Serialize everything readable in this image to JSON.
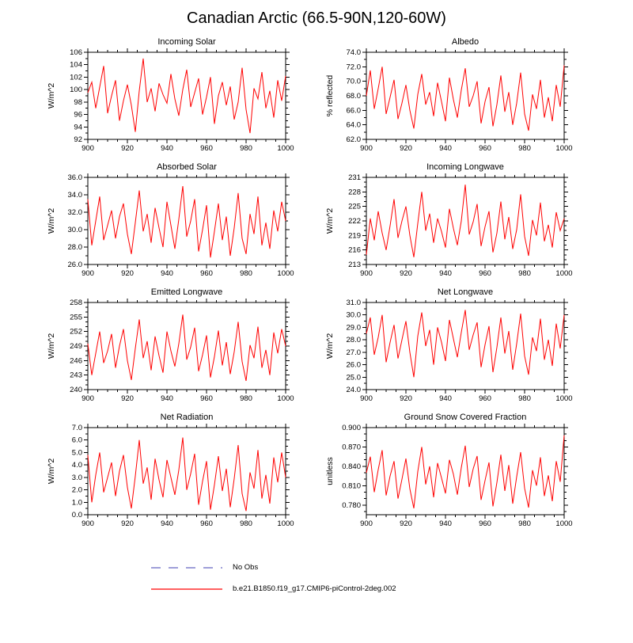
{
  "page_title": "Canadian Arctic (66.5-90N,120-60W)",
  "legend": {
    "items": [
      {
        "label": "No Obs",
        "color": "#9f9fd9",
        "style": "dashed"
      },
      {
        "label": "b.e21.B1850.f19_g17.CMIP6-piControl-2deg.002",
        "color": "#ff0000",
        "style": "solid"
      }
    ]
  },
  "chart_data": [
    {
      "type": "line",
      "title": "Incoming Solar",
      "ylabel": "W/m^2",
      "xlim": [
        900,
        1000
      ],
      "xticks": [
        900,
        920,
        940,
        960,
        980,
        1000
      ],
      "xtick_labels": [
        "900",
        "920",
        "940",
        "960",
        "980",
        "1000"
      ],
      "xminor": 5,
      "ylim": [
        92,
        106
      ],
      "yticks": [
        92,
        94,
        96,
        98,
        100,
        102,
        104,
        106
      ],
      "ytick_labels": [
        "92",
        "94",
        "96",
        "98",
        "100",
        "102",
        "104",
        "106"
      ],
      "yminor": 1,
      "series": [
        {
          "name": "b.e21.B1850.f19_g17.CMIP6-piControl-2deg.002",
          "color": "#ff0000",
          "x_start": 900,
          "x_step": 2,
          "values": [
            99.5,
            101.2,
            97.0,
            100.4,
            103.8,
            96.2,
            99.0,
            101.5,
            95.0,
            98.2,
            100.8,
            97.5,
            93.2,
            99.8,
            105.0,
            98.0,
            100.2,
            96.5,
            101.0,
            99.2,
            97.8,
            102.5,
            98.5,
            95.8,
            100.0,
            103.2,
            97.2,
            99.5,
            101.8,
            96.0,
            98.8,
            102.0,
            94.5,
            99.0,
            101.2,
            97.5,
            100.5,
            95.2,
            98.0,
            103.5,
            96.8,
            93.0,
            100.2,
            98.5,
            102.8,
            97.0,
            99.8,
            95.5,
            101.5,
            98.2,
            102.2
          ]
        }
      ]
    },
    {
      "type": "line",
      "title": "Albedo",
      "ylabel": "% reflected",
      "xlim": [
        900,
        1000
      ],
      "xticks": [
        900,
        920,
        940,
        960,
        980,
        1000
      ],
      "xtick_labels": [
        "900",
        "920",
        "940",
        "960",
        "980",
        "1000"
      ],
      "xminor": 5,
      "ylim": [
        62,
        74
      ],
      "yticks": [
        62,
        64,
        66,
        68,
        70,
        72,
        74
      ],
      "ytick_labels": [
        "62.0",
        "64.0",
        "66.0",
        "68.0",
        "70.0",
        "72.0",
        "74.0"
      ],
      "yminor": 1,
      "series": [
        {
          "name": "b.e21.B1850.f19_g17.CMIP6-piControl-2deg.002",
          "color": "#ff0000",
          "x_start": 900,
          "x_step": 2,
          "values": [
            68.0,
            71.5,
            66.2,
            69.0,
            72.0,
            65.5,
            67.8,
            70.2,
            64.8,
            67.0,
            69.5,
            66.0,
            63.5,
            68.2,
            71.0,
            66.8,
            68.5,
            65.2,
            69.8,
            67.2,
            64.5,
            70.5,
            67.5,
            65.0,
            68.8,
            71.8,
            66.5,
            68.0,
            70.0,
            64.2,
            67.2,
            69.2,
            63.8,
            66.8,
            70.8,
            65.8,
            68.5,
            64.0,
            67.0,
            71.2,
            65.5,
            63.2,
            68.2,
            66.2,
            70.2,
            65.0,
            67.8,
            64.5,
            69.5,
            66.5,
            72.2
          ]
        }
      ]
    },
    {
      "type": "line",
      "title": "Absorbed Solar",
      "ylabel": "W/m^2",
      "xlim": [
        900,
        1000
      ],
      "xticks": [
        900,
        920,
        940,
        960,
        980,
        1000
      ],
      "xtick_labels": [
        "900",
        "920",
        "940",
        "960",
        "980",
        "1000"
      ],
      "xminor": 5,
      "ylim": [
        26,
        36
      ],
      "yticks": [
        26,
        28,
        30,
        32,
        34,
        36
      ],
      "ytick_labels": [
        "26.0",
        "28.0",
        "30.0",
        "32.0",
        "34.0",
        "36.0"
      ],
      "yminor": 1,
      "series": [
        {
          "name": "b.e21.B1850.f19_g17.CMIP6-piControl-2deg.002",
          "color": "#ff0000",
          "x_start": 900,
          "x_step": 2,
          "values": [
            33.5,
            28.2,
            31.0,
            33.8,
            28.8,
            30.5,
            32.2,
            29.0,
            31.5,
            33.0,
            29.5,
            27.2,
            30.8,
            34.5,
            29.8,
            31.8,
            28.5,
            32.5,
            30.2,
            28.0,
            33.2,
            30.5,
            27.8,
            31.2,
            35.0,
            29.2,
            31.0,
            33.5,
            27.5,
            30.0,
            32.8,
            26.8,
            29.8,
            33.0,
            28.8,
            31.5,
            27.0,
            30.2,
            34.2,
            29.0,
            27.2,
            31.8,
            29.5,
            33.8,
            28.2,
            30.8,
            27.8,
            32.2,
            29.8,
            33.2,
            31.0
          ]
        }
      ]
    },
    {
      "type": "line",
      "title": "Incoming Longwave",
      "ylabel": "W/m^2",
      "xlim": [
        900,
        1000
      ],
      "xticks": [
        900,
        920,
        940,
        960,
        980,
        1000
      ],
      "xtick_labels": [
        "900",
        "920",
        "940",
        "960",
        "980",
        "1000"
      ],
      "xminor": 5,
      "ylim": [
        213,
        231
      ],
      "yticks": [
        213,
        216,
        219,
        222,
        225,
        228,
        231
      ],
      "ytick_labels": [
        "213",
        "216",
        "219",
        "222",
        "225",
        "228",
        "231"
      ],
      "yminor": 1,
      "series": [
        {
          "name": "b.e21.B1850.f19_g17.CMIP6-piControl-2deg.002",
          "color": "#ff0000",
          "x_start": 900,
          "x_step": 2,
          "values": [
            215.0,
            222.5,
            218.0,
            224.0,
            219.5,
            216.0,
            221.0,
            226.5,
            218.5,
            222.0,
            225.0,
            219.0,
            214.5,
            221.5,
            228.0,
            220.0,
            223.5,
            217.5,
            222.5,
            219.8,
            216.5,
            224.5,
            220.5,
            217.0,
            222.0,
            229.5,
            219.2,
            221.8,
            225.5,
            216.8,
            220.8,
            224.0,
            215.5,
            219.5,
            226.0,
            218.2,
            222.8,
            216.2,
            220.2,
            227.5,
            218.8,
            214.8,
            222.2,
            219.0,
            225.8,
            217.8,
            221.2,
            216.5,
            223.8,
            220.0,
            222.5
          ]
        }
      ]
    },
    {
      "type": "line",
      "title": "Emitted Longwave",
      "ylabel": "W/m^2",
      "xlim": [
        900,
        1000
      ],
      "xticks": [
        900,
        920,
        940,
        960,
        980,
        1000
      ],
      "xtick_labels": [
        "900",
        "920",
        "940",
        "960",
        "980",
        "1000"
      ],
      "xminor": 5,
      "ylim": [
        240,
        258
      ],
      "yticks": [
        240,
        243,
        246,
        249,
        252,
        255,
        258
      ],
      "ytick_labels": [
        "240",
        "243",
        "246",
        "249",
        "252",
        "255",
        "258"
      ],
      "yminor": 1,
      "series": [
        {
          "name": "b.e21.B1850.f19_g17.CMIP6-piControl-2deg.002",
          "color": "#ff0000",
          "x_start": 900,
          "x_step": 2,
          "values": [
            249.5,
            243.0,
            247.5,
            252.0,
            245.5,
            248.0,
            251.5,
            244.5,
            249.0,
            252.5,
            246.0,
            242.0,
            248.5,
            254.5,
            246.5,
            250.0,
            244.0,
            251.0,
            247.0,
            243.5,
            252.0,
            248.0,
            244.8,
            249.5,
            255.5,
            246.2,
            248.8,
            252.8,
            243.8,
            247.2,
            251.2,
            242.5,
            246.8,
            252.2,
            245.0,
            249.8,
            243.2,
            247.8,
            254.0,
            245.8,
            241.8,
            249.2,
            246.5,
            253.0,
            244.5,
            248.2,
            243.0,
            251.8,
            247.5,
            252.5,
            249.0
          ]
        }
      ]
    },
    {
      "type": "line",
      "title": "Net Longwave",
      "ylabel": "W/m^2",
      "xlim": [
        900,
        1000
      ],
      "xticks": [
        900,
        920,
        940,
        960,
        980,
        1000
      ],
      "xtick_labels": [
        "900",
        "920",
        "940",
        "960",
        "980",
        "1000"
      ],
      "xminor": 5,
      "ylim": [
        24,
        31
      ],
      "yticks": [
        24,
        25,
        26,
        27,
        28,
        29,
        30,
        31
      ],
      "ytick_labels": [
        "24.0",
        "25.0",
        "26.0",
        "27.0",
        "28.0",
        "29.0",
        "30.0",
        "31.0"
      ],
      "yminor": 0.5,
      "series": [
        {
          "name": "b.e21.B1850.f19_g17.CMIP6-piControl-2deg.002",
          "color": "#ff0000",
          "x_start": 900,
          "x_step": 2,
          "values": [
            28.5,
            29.8,
            26.8,
            28.2,
            30.0,
            26.2,
            27.8,
            29.2,
            26.5,
            28.0,
            29.5,
            27.0,
            25.0,
            28.3,
            30.2,
            27.5,
            28.8,
            26.0,
            29.0,
            27.8,
            26.3,
            29.6,
            28.1,
            26.6,
            28.6,
            30.4,
            27.2,
            28.4,
            29.4,
            25.8,
            27.6,
            29.1,
            25.4,
            27.4,
            29.8,
            26.9,
            28.7,
            25.6,
            27.7,
            30.1,
            26.7,
            25.2,
            28.2,
            27.1,
            29.7,
            26.4,
            28.0,
            25.9,
            29.3,
            27.3,
            30.0
          ]
        }
      ]
    },
    {
      "type": "line",
      "title": "Net Radiation",
      "ylabel": "W/m^2",
      "xlim": [
        900,
        1000
      ],
      "xticks": [
        900,
        920,
        940,
        960,
        980,
        1000
      ],
      "xtick_labels": [
        "900",
        "920",
        "940",
        "960",
        "980",
        "1000"
      ],
      "xminor": 5,
      "ylim": [
        0,
        7
      ],
      "yticks": [
        0,
        1,
        2,
        3,
        4,
        5,
        6,
        7
      ],
      "ytick_labels": [
        "0.0",
        "1.0",
        "2.0",
        "3.0",
        "4.0",
        "5.0",
        "6.0",
        "7.0"
      ],
      "yminor": 0.5,
      "series": [
        {
          "name": "b.e21.B1850.f19_g17.CMIP6-piControl-2deg.002",
          "color": "#ff0000",
          "x_start": 900,
          "x_step": 2,
          "values": [
            4.8,
            1.0,
            3.2,
            5.0,
            1.8,
            3.0,
            4.2,
            1.5,
            3.5,
            4.8,
            2.2,
            0.5,
            3.1,
            6.0,
            2.5,
            3.8,
            1.2,
            4.5,
            2.8,
            1.4,
            4.4,
            3.0,
            1.6,
            3.6,
            6.2,
            2.0,
            3.3,
            4.9,
            0.8,
            2.7,
            4.3,
            0.4,
            2.4,
            4.7,
            1.9,
            3.7,
            0.6,
            2.9,
            5.6,
            1.7,
            0.3,
            3.4,
            2.1,
            5.2,
            1.3,
            3.2,
            0.9,
            4.6,
            2.6,
            5.0,
            3.0
          ]
        }
      ]
    },
    {
      "type": "line",
      "title": "Ground Snow Covered Fraction",
      "ylabel": "unitless",
      "xlim": [
        900,
        1000
      ],
      "xticks": [
        900,
        920,
        940,
        960,
        980,
        1000
      ],
      "xtick_labels": [
        "900",
        "920",
        "940",
        "960",
        "980",
        "1000"
      ],
      "xminor": 5,
      "ylim": [
        0.765,
        0.9
      ],
      "yticks": [
        0.78,
        0.81,
        0.84,
        0.87,
        0.9
      ],
      "ytick_labels": [
        "0.780",
        "0.810",
        "0.840",
        "0.870",
        "0.900"
      ],
      "yminor": 0.01,
      "series": [
        {
          "name": "b.e21.B1850.f19_g17.CMIP6-piControl-2deg.002",
          "color": "#ff0000",
          "x_start": 900,
          "x_step": 2,
          "values": [
            0.83,
            0.855,
            0.8,
            0.835,
            0.865,
            0.795,
            0.825,
            0.848,
            0.79,
            0.82,
            0.852,
            0.805,
            0.775,
            0.832,
            0.87,
            0.812,
            0.84,
            0.792,
            0.845,
            0.822,
            0.798,
            0.85,
            0.828,
            0.796,
            0.838,
            0.872,
            0.808,
            0.836,
            0.856,
            0.788,
            0.818,
            0.846,
            0.778,
            0.815,
            0.858,
            0.802,
            0.842,
            0.782,
            0.824,
            0.862,
            0.806,
            0.776,
            0.834,
            0.81,
            0.854,
            0.794,
            0.826,
            0.786,
            0.848,
            0.816,
            0.888
          ]
        }
      ]
    }
  ]
}
